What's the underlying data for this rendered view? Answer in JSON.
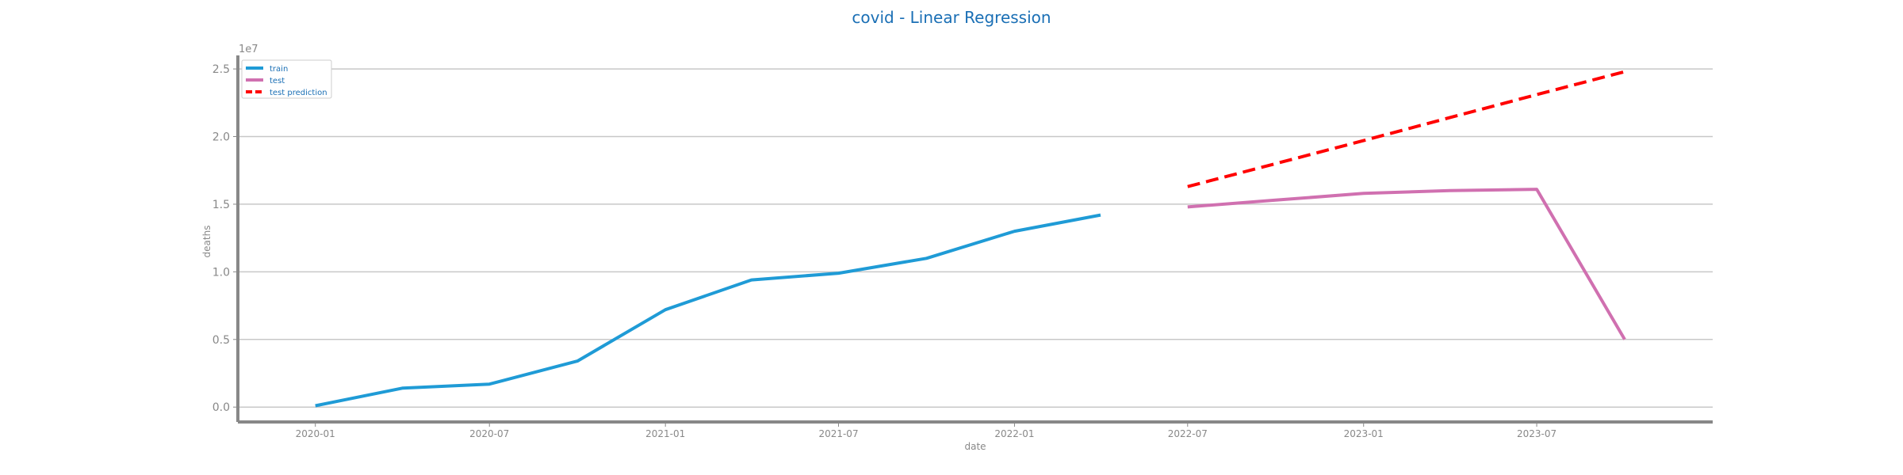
{
  "chart_data": {
    "type": "line",
    "title": "covid - Linear Regression",
    "xlabel": "date",
    "ylabel": "deaths",
    "y_multiplier_label": "1e7",
    "xlim": [
      "2019-10-12",
      "2024-01-01"
    ],
    "ylim": [
      -1100000,
      26000000
    ],
    "x_ticks": [
      "2020-01",
      "2020-07",
      "2021-01",
      "2021-07",
      "2022-01",
      "2022-07",
      "2023-01",
      "2023-07"
    ],
    "y_ticks": [
      0,
      5000000,
      10000000,
      15000000,
      20000000,
      25000000
    ],
    "y_tick_labels": [
      "0.0",
      "0.5",
      "1.0",
      "1.5",
      "2.0",
      "2.5"
    ],
    "grid": "horizontal",
    "legend_position": "top-left",
    "series": [
      {
        "name": "train",
        "color": "#1f9bd6",
        "style": "solid",
        "points": [
          {
            "x": "2020-01-01",
            "y": 100000
          },
          {
            "x": "2020-04-01",
            "y": 1400000
          },
          {
            "x": "2020-07-01",
            "y": 1700000
          },
          {
            "x": "2020-10-01",
            "y": 3400000
          },
          {
            "x": "2021-01-01",
            "y": 7200000
          },
          {
            "x": "2021-04-01",
            "y": 9400000
          },
          {
            "x": "2021-07-01",
            "y": 9900000
          },
          {
            "x": "2021-10-01",
            "y": 11000000
          },
          {
            "x": "2022-01-01",
            "y": 13000000
          },
          {
            "x": "2022-04-01",
            "y": 14200000
          }
        ]
      },
      {
        "name": "test",
        "color": "#d070b0",
        "style": "solid",
        "points": [
          {
            "x": "2022-07-01",
            "y": 14800000
          },
          {
            "x": "2022-10-01",
            "y": 15300000
          },
          {
            "x": "2023-01-01",
            "y": 15800000
          },
          {
            "x": "2023-04-01",
            "y": 16000000
          },
          {
            "x": "2023-07-01",
            "y": 16100000
          },
          {
            "x": "2023-10-01",
            "y": 5000000
          }
        ]
      },
      {
        "name": "test prediction",
        "color": "#ff0000",
        "style": "dashed",
        "points": [
          {
            "x": "2022-07-01",
            "y": 16300000
          },
          {
            "x": "2022-10-01",
            "y": 18000000
          },
          {
            "x": "2023-01-01",
            "y": 19700000
          },
          {
            "x": "2023-04-01",
            "y": 21400000
          },
          {
            "x": "2023-07-01",
            "y": 23100000
          },
          {
            "x": "2023-10-01",
            "y": 24800000
          }
        ]
      }
    ]
  }
}
